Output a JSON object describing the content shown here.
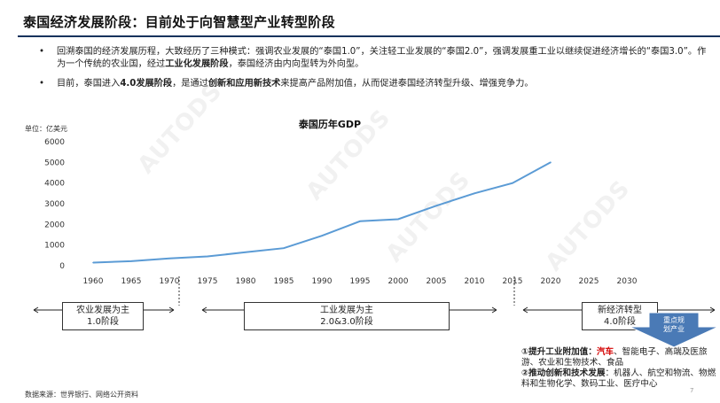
{
  "title": "泰国经济发展阶段：目前处于向智慧型产业转型阶段",
  "bullets": [
    {
      "pre": "回溯泰国的经济发展历程，大致经历了三种模式：强调农业发展的“泰国1.0”，关注轻工业发展的“泰国2.0”，强调发展重工业以继续促进经济增长的“泰国3.0”。作为一个传统的农业国，经过",
      "bold": "工业化发展阶段",
      "post": "，泰国经济由内向型转为外向型。"
    },
    {
      "pre": "目前，泰国进入",
      "bold1": "4.0发展阶段",
      "mid": "，是通过",
      "bold2": "创新和应用新技术",
      "post": "来提高产品附加值，从而促进泰国经济转型升级、增强竞争力。"
    }
  ],
  "watermark": "AUTODS",
  "chart_data": {
    "type": "line",
    "title": "泰国历年GDP",
    "unit_label": "单位：亿美元",
    "xlabel": "",
    "ylabel": "",
    "x": [
      1960,
      1965,
      1970,
      1975,
      1980,
      1985,
      1990,
      1995,
      2000,
      2005,
      2010,
      2015,
      2020
    ],
    "xticks": [
      "1960",
      "1965",
      "1970",
      "1975",
      "1980",
      "1985",
      "1990",
      "1995",
      "2000",
      "2005",
      "2010",
      "2015",
      "2020",
      "2025",
      "2030"
    ],
    "xlim": [
      1960,
      2030
    ],
    "ylim": [
      0,
      6000
    ],
    "yticks": [
      "0",
      "1000",
      "2000",
      "3000",
      "4000",
      "5000",
      "6000"
    ],
    "series": [
      {
        "values": [
          150,
          220,
          350,
          450,
          650,
          850,
          1450,
          2150,
          2250,
          2900,
          3500,
          4000,
          5000
        ]
      }
    ],
    "grid": false,
    "line_color": "#5b9bd5"
  },
  "timeline": {
    "stage1": {
      "line1": "农业发展为主",
      "line2": "1.0阶段"
    },
    "stage2": {
      "line1": "工业发展为主",
      "line2": "2.0&3.0阶段"
    },
    "stage3": {
      "line1": "新经济转型",
      "line2": "4.0阶段"
    },
    "focus_arrow": {
      "line1": "重点规",
      "line2": "划产业"
    }
  },
  "notes": {
    "item1_label": "①提升工业附加值",
    "item1_colon": "：",
    "item1_red": "汽车",
    "item1_rest": "、智能电子、高端及医旅游、农业和生物技术、食品",
    "item2_label": "②推动创新和技术发展",
    "item2_rest": "：机器人、航空和物流、物燃料和生物化学、数码工业、医疗中心"
  },
  "source": "数据来源：世界银行、网络公开资料",
  "page_number": "7",
  "colors": {
    "title_rule": "#16325c",
    "arrow_blue": "#4a7ab6",
    "line_blue": "#5b9bd5"
  }
}
